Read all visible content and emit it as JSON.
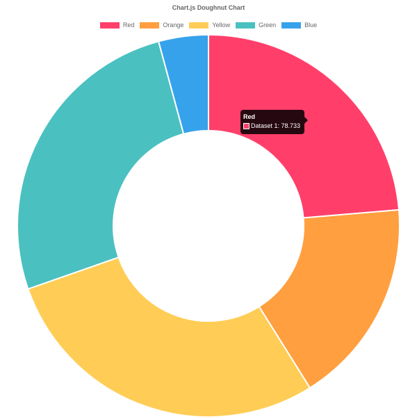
{
  "chart_data": {
    "type": "pie",
    "variant": "doughnut",
    "title": "Chart.js Doughnut Chart",
    "legend_position": "top",
    "categories": [
      "Red",
      "Orange",
      "Yellow",
      "Green",
      "Blue"
    ],
    "series": [
      {
        "name": "Dataset 1",
        "values": [
          78.733,
          58.0,
          95.0,
          87.0,
          14.0
        ]
      }
    ],
    "colors": [
      "#ff3f6a",
      "#ff9f40",
      "#ffcd56",
      "#4bc0c0",
      "#36a2eb"
    ],
    "tooltip": {
      "title": "Red",
      "label": "Dataset 1: 78.733"
    }
  }
}
